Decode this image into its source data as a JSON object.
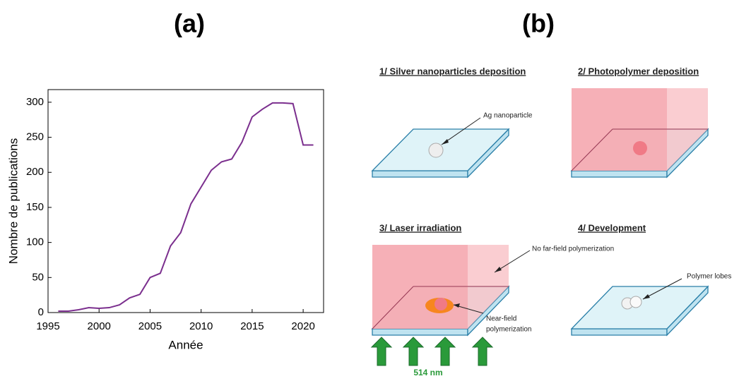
{
  "chart_data": {
    "type": "line",
    "title": "(a)",
    "x_label": "Année",
    "y_label": "Nombre de publications",
    "x": [
      1996,
      1997,
      1998,
      1999,
      2000,
      2001,
      2002,
      2003,
      2004,
      2005,
      2006,
      2007,
      2008,
      2009,
      2010,
      2011,
      2012,
      2013,
      2014,
      2015,
      2016,
      2017,
      2018,
      2019,
      2020,
      2021
    ],
    "values": [
      2,
      2,
      4,
      7,
      6,
      7,
      11,
      21,
      26,
      50,
      56,
      95,
      114,
      155,
      179,
      203,
      215,
      219,
      243,
      279,
      290,
      299,
      299,
      298,
      239,
      239
    ],
    "color": "#7b2f8e",
    "xlim": [
      1995,
      2022
    ],
    "xticks": [
      1995,
      2000,
      2005,
      2010,
      2015,
      2020
    ],
    "ylim": [
      0,
      318
    ],
    "yticks": [
      0,
      50,
      100,
      150,
      200,
      250,
      300
    ]
  },
  "diagram": {
    "label": "(b)",
    "steps": [
      "1/ Silver nanoparticles deposition",
      "2/ Photopolymer deposition",
      "3/ Laser irradiation",
      "4/ Development"
    ],
    "ag_label": "Ag nanoparticle",
    "far_field": "No far-field polymerization",
    "near_field": [
      "Near-field",
      "polymerization"
    ],
    "lobes": "Polymer lobes",
    "wavelength": "514 nm"
  }
}
